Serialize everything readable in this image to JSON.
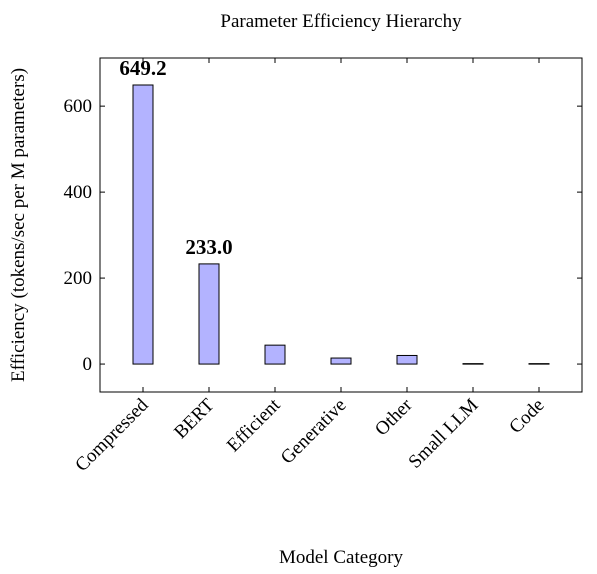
{
  "chart_data": {
    "type": "bar",
    "title": "Parameter Efficiency Hierarchy",
    "x_label": "Model Category",
    "y_label": "Efficiency (tokens/sec per M parameters)",
    "categories": [
      "Compressed",
      "BERT",
      "Efficient",
      "Generative",
      "Other",
      "Small LLM",
      "Code"
    ],
    "values": [
      649.2,
      233.0,
      44,
      14,
      20,
      1,
      1
    ],
    "value_labels": [
      "649.2",
      "233.0",
      null,
      null,
      null,
      null,
      null
    ],
    "color": "#b3b3ff",
    "ylim": [
      -65,
      712
    ],
    "yticks": [
      0,
      200,
      400,
      600
    ],
    "grid": false
  }
}
